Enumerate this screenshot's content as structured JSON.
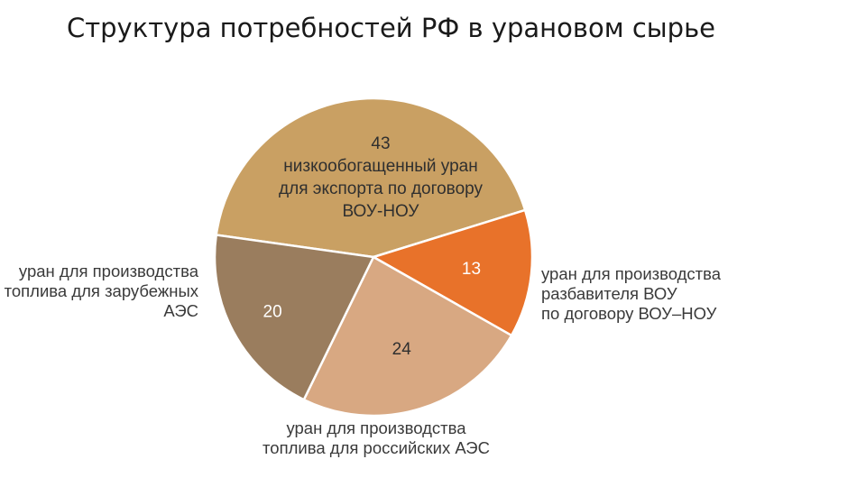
{
  "title": "Структура потребностей РФ в урановом сырье",
  "chart_data": {
    "type": "pie",
    "title": "Структура потребностей РФ в урановом сырье",
    "slices": [
      {
        "value": 43,
        "label_lines": [
          "низкообогащенный уран",
          "для экспорта по договору",
          "ВОУ-НОУ"
        ],
        "color": "#c9a063",
        "label_position": "inside"
      },
      {
        "value": 13,
        "label_lines": [
          "уран для производства",
          "разбавителя ВОУ",
          "по договору ВОУ–НОУ"
        ],
        "color": "#e8722a",
        "label_position": "right"
      },
      {
        "value": 24,
        "label_lines": [
          "уран для производства",
          "топлива для российских АЭС"
        ],
        "color": "#d8a882",
        "label_position": "bottom"
      },
      {
        "value": 20,
        "label_lines": [
          "уран для производства",
          "топлива для зарубежных",
          "АЭС"
        ],
        "color": "#9a7d5e",
        "label_position": "left"
      }
    ]
  }
}
